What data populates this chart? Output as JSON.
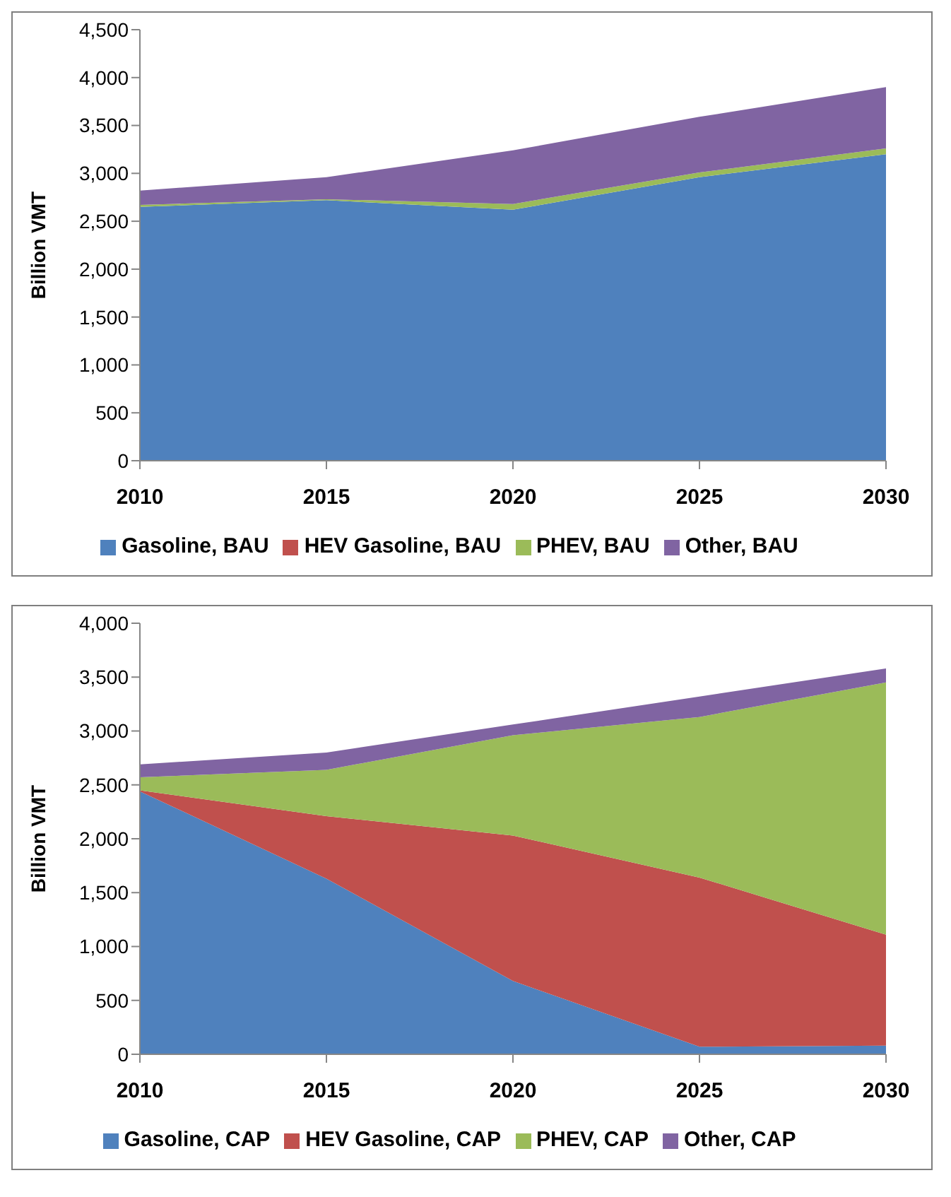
{
  "chart_data": [
    {
      "type": "area",
      "stacked": true,
      "ylabel": "Billion VMT",
      "x": [
        2010,
        2015,
        2020,
        2025,
        2030
      ],
      "xlim": [
        2010,
        2030
      ],
      "xticks": [
        2010,
        2015,
        2020,
        2025,
        2030
      ],
      "ylim": [
        0,
        4500
      ],
      "yticks": [
        {
          "value": 0,
          "label": "0"
        },
        {
          "value": 500,
          "label": "500"
        },
        {
          "value": 1000,
          "label": "1,000"
        },
        {
          "value": 1500,
          "label": "1,500"
        },
        {
          "value": 2000,
          "label": "2,000"
        },
        {
          "value": 2500,
          "label": "2,500"
        },
        {
          "value": 3000,
          "label": "3,000"
        },
        {
          "value": 3500,
          "label": "3,500"
        },
        {
          "value": 4000,
          "label": "4,000"
        },
        {
          "value": 4500,
          "label": "4,500"
        }
      ],
      "legend": "bottom",
      "series": [
        {
          "name": "Gasoline, BAU",
          "color": "#4f81bd",
          "values": [
            2650,
            2720,
            2620,
            2960,
            3200
          ]
        },
        {
          "name": "HEV Gasoline, BAU",
          "color": "#c0504d",
          "values": [
            null,
            null,
            null,
            null,
            null
          ]
        },
        {
          "name": "PHEV, BAU",
          "color": "#9bbb59",
          "values": [
            20,
            10,
            60,
            50,
            60
          ]
        },
        {
          "name": "Other, BAU",
          "color": "#8064a2",
          "values": [
            150,
            230,
            560,
            580,
            640
          ]
        }
      ]
    },
    {
      "type": "area",
      "stacked": true,
      "ylabel": "Billion VMT",
      "x": [
        2010,
        2015,
        2020,
        2025,
        2030
      ],
      "xlim": [
        2010,
        2030
      ],
      "xticks": [
        2010,
        2015,
        2020,
        2025,
        2030
      ],
      "ylim": [
        0,
        4000
      ],
      "yticks": [
        {
          "value": 0,
          "label": "0"
        },
        {
          "value": 500,
          "label": "500"
        },
        {
          "value": 1000,
          "label": "1,000"
        },
        {
          "value": 1500,
          "label": "1,500"
        },
        {
          "value": 2000,
          "label": "2,000"
        },
        {
          "value": 2500,
          "label": "2,500"
        },
        {
          "value": 3000,
          "label": "3,000"
        },
        {
          "value": 3500,
          "label": "3,500"
        },
        {
          "value": 4000,
          "label": "4,000"
        }
      ],
      "legend": "bottom",
      "series": [
        {
          "name": "Gasoline, CAP",
          "color": "#4f81bd",
          "values": [
            2440,
            1630,
            680,
            70,
            80
          ]
        },
        {
          "name": "HEV Gasoline, CAP",
          "color": "#c0504d",
          "values": [
            10,
            580,
            1350,
            1570,
            1030
          ]
        },
        {
          "name": "PHEV, CAP",
          "color": "#9bbb59",
          "values": [
            120,
            430,
            930,
            1490,
            2340
          ]
        },
        {
          "name": "Other, CAP",
          "color": "#8064a2",
          "values": [
            120,
            160,
            100,
            190,
            130
          ]
        }
      ]
    }
  ]
}
